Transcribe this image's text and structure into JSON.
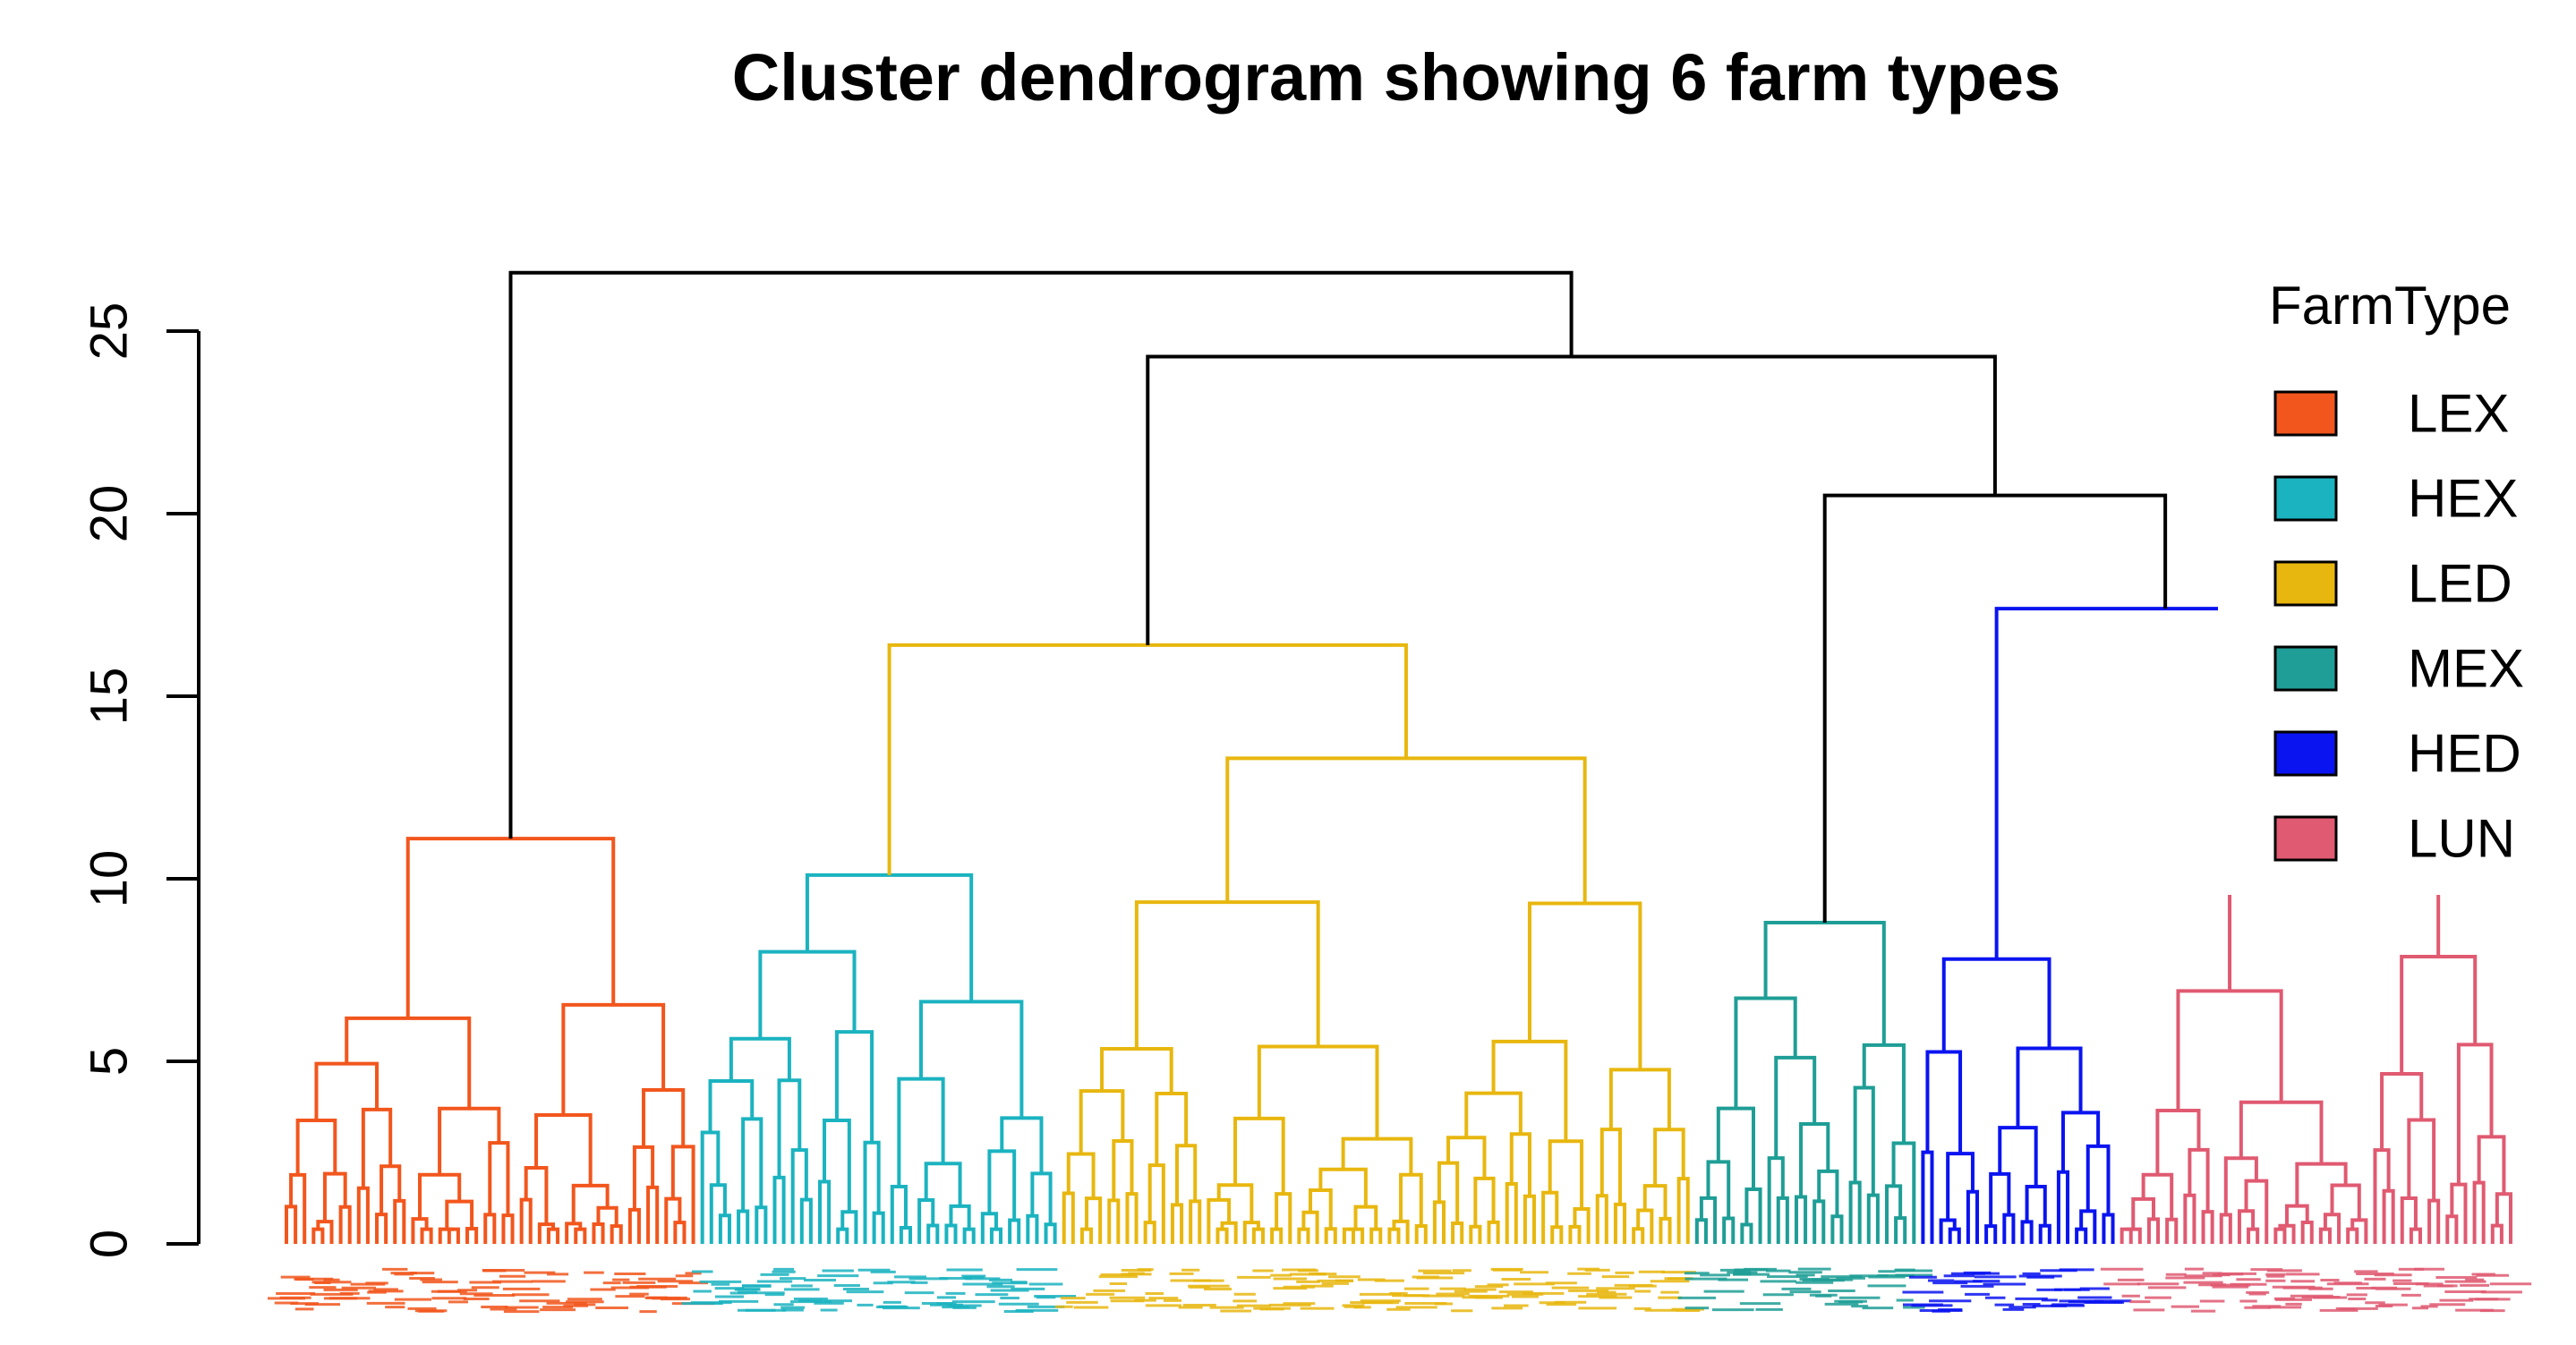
{
  "chart_data": {
    "type": "dendrogram",
    "title": "Cluster dendrogram showing 6 farm types",
    "xlabel": "",
    "ylabel": "",
    "ylim": [
      0,
      27
    ],
    "yticks": [
      0,
      5,
      10,
      15,
      20,
      25
    ],
    "leaf_labels": "dense overlapping leaf labels, colored by farm type (illegible)",
    "legend": {
      "title": "FarmType",
      "position": "top-right",
      "entries": [
        {
          "label": "LEX",
          "color": "#F2561D"
        },
        {
          "label": "HEX",
          "color": "#1BB3C0"
        },
        {
          "label": "LED",
          "color": "#E8B70F"
        },
        {
          "label": "MEX",
          "color": "#1E9E96"
        },
        {
          "label": "HED",
          "color": "#0A14F0"
        },
        {
          "label": "LUN",
          "color": "#E05A71"
        }
      ]
    },
    "clusters": [
      {
        "farm_type": "LEX",
        "color": "#F2561D",
        "leaf_count": 46,
        "merge_height": 11.1
      },
      {
        "farm_type": "HEX",
        "color": "#1BB3C0",
        "leaf_count": 40,
        "merge_height": 10.1
      },
      {
        "farm_type": "LED",
        "color": "#E8B70F",
        "leaf_count": 70,
        "merge_height": 13.3
      },
      {
        "farm_type": "MEX",
        "color": "#1E9E96",
        "leaf_count": 25,
        "merge_height": 8.8
      },
      {
        "farm_type": "HED",
        "color": "#0A14F0",
        "leaf_count": 22,
        "merge_height": 7.8
      },
      {
        "farm_type": "LUN",
        "color": "#E05A71",
        "leaf_count": 44,
        "merge_height": 11.5
      }
    ],
    "upper_merges": [
      {
        "joins": [
          "HEX",
          "LED"
        ],
        "height": 16.4,
        "color": "#E8B70F"
      },
      {
        "joins": [
          "HED",
          "LUN"
        ],
        "height": 17.4,
        "color": "#0A14F0"
      },
      {
        "joins": [
          "MEX",
          "HED+LUN"
        ],
        "height": 20.5,
        "color": "#000000"
      },
      {
        "joins": [
          "HEX+LED",
          "MEX+HED+LUN"
        ],
        "height": 24.3,
        "color": "#000000"
      },
      {
        "joins": [
          "LEX",
          "rest"
        ],
        "height": 26.6,
        "color": "#000000"
      }
    ]
  }
}
